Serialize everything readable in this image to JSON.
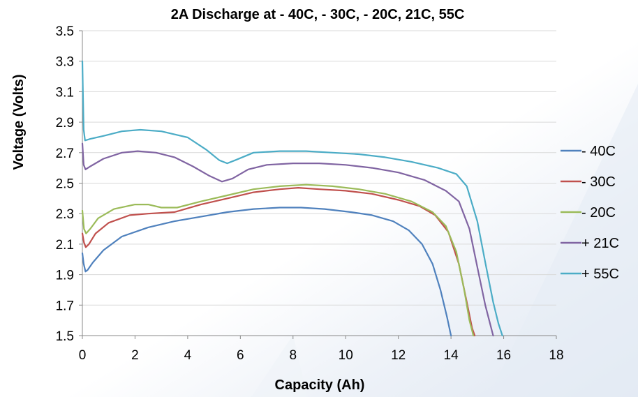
{
  "colors": {
    "-40C": "#4f81bd",
    "-30C": "#c0504d",
    "-20C": "#9bbb59",
    "+21C": "#8064a2",
    "+55C": "#4bacc6",
    "grid": "#d9d9d9",
    "axis": "#888888"
  },
  "chart_data": {
    "type": "line",
    "title": "2A Discharge at - 40C, - 30C, - 20C, 21C, 55C",
    "xlabel": "Capacity (Ah)",
    "ylabel": "Voltage (Volts)",
    "xlim": [
      0,
      18
    ],
    "ylim": [
      1.5,
      3.5
    ],
    "xticks": [
      "0",
      "2",
      "4",
      "6",
      "8",
      "10",
      "12",
      "14",
      "16",
      "18"
    ],
    "yticks": [
      "3.5",
      "3.3",
      "3.1",
      "2.9",
      "2.7",
      "2.5",
      "2.3",
      "2.1",
      "1.9",
      "1.7",
      "1.5"
    ],
    "grid": "horizontal",
    "legend_position": "right",
    "series": [
      {
        "name": "- 40C",
        "color_key": "-40C",
        "points": [
          [
            0,
            2.04
          ],
          [
            0.05,
            1.97
          ],
          [
            0.12,
            1.92
          ],
          [
            0.2,
            1.93
          ],
          [
            0.4,
            1.98
          ],
          [
            0.8,
            2.06
          ],
          [
            1.5,
            2.15
          ],
          [
            2.5,
            2.21
          ],
          [
            3.5,
            2.25
          ],
          [
            4.5,
            2.28
          ],
          [
            5.5,
            2.31
          ],
          [
            6.5,
            2.33
          ],
          [
            7.5,
            2.34
          ],
          [
            8.3,
            2.34
          ],
          [
            9.2,
            2.33
          ],
          [
            10.2,
            2.31
          ],
          [
            11.0,
            2.29
          ],
          [
            11.8,
            2.25
          ],
          [
            12.4,
            2.19
          ],
          [
            12.9,
            2.1
          ],
          [
            13.3,
            1.97
          ],
          [
            13.6,
            1.8
          ],
          [
            13.85,
            1.62
          ],
          [
            14.0,
            1.5
          ]
        ]
      },
      {
        "name": "- 30C",
        "color_key": "-30C",
        "points": [
          [
            0,
            2.17
          ],
          [
            0.06,
            2.11
          ],
          [
            0.13,
            2.08
          ],
          [
            0.25,
            2.1
          ],
          [
            0.5,
            2.17
          ],
          [
            1.0,
            2.24
          ],
          [
            1.8,
            2.29
          ],
          [
            2.5,
            2.3
          ],
          [
            3.5,
            2.31
          ],
          [
            4.5,
            2.36
          ],
          [
            5.5,
            2.4
          ],
          [
            6.5,
            2.44
          ],
          [
            7.5,
            2.46
          ],
          [
            8.2,
            2.47
          ],
          [
            9.0,
            2.46
          ],
          [
            10.0,
            2.45
          ],
          [
            11.0,
            2.43
          ],
          [
            12.0,
            2.39
          ],
          [
            12.8,
            2.35
          ],
          [
            13.4,
            2.29
          ],
          [
            13.9,
            2.18
          ],
          [
            14.3,
            1.97
          ],
          [
            14.6,
            1.72
          ],
          [
            14.8,
            1.55
          ],
          [
            14.9,
            1.5
          ]
        ]
      },
      {
        "name": "- 20C",
        "color_key": "-20C",
        "points": [
          [
            0,
            2.32
          ],
          [
            0.06,
            2.2
          ],
          [
            0.14,
            2.17
          ],
          [
            0.3,
            2.2
          ],
          [
            0.6,
            2.27
          ],
          [
            1.2,
            2.33
          ],
          [
            2.0,
            2.36
          ],
          [
            2.5,
            2.36
          ],
          [
            3.0,
            2.34
          ],
          [
            3.6,
            2.34
          ],
          [
            4.5,
            2.38
          ],
          [
            5.5,
            2.42
          ],
          [
            6.5,
            2.46
          ],
          [
            7.5,
            2.48
          ],
          [
            8.5,
            2.49
          ],
          [
            9.5,
            2.48
          ],
          [
            10.5,
            2.46
          ],
          [
            11.5,
            2.43
          ],
          [
            12.5,
            2.38
          ],
          [
            13.3,
            2.31
          ],
          [
            13.8,
            2.22
          ],
          [
            14.2,
            2.05
          ],
          [
            14.5,
            1.8
          ],
          [
            14.7,
            1.6
          ],
          [
            14.85,
            1.5
          ]
        ]
      },
      {
        "name": "+ 21C",
        "color_key": "+21C",
        "points": [
          [
            0,
            2.76
          ],
          [
            0.05,
            2.62
          ],
          [
            0.12,
            2.59
          ],
          [
            0.3,
            2.61
          ],
          [
            0.8,
            2.66
          ],
          [
            1.5,
            2.7
          ],
          [
            2.1,
            2.71
          ],
          [
            2.8,
            2.7
          ],
          [
            3.5,
            2.67
          ],
          [
            4.2,
            2.61
          ],
          [
            4.8,
            2.55
          ],
          [
            5.3,
            2.51
          ],
          [
            5.7,
            2.53
          ],
          [
            6.3,
            2.59
          ],
          [
            7.0,
            2.62
          ],
          [
            8.0,
            2.63
          ],
          [
            9.0,
            2.63
          ],
          [
            10.0,
            2.62
          ],
          [
            11.0,
            2.6
          ],
          [
            12.0,
            2.57
          ],
          [
            13.0,
            2.52
          ],
          [
            13.8,
            2.45
          ],
          [
            14.3,
            2.38
          ],
          [
            14.7,
            2.2
          ],
          [
            15.0,
            1.95
          ],
          [
            15.3,
            1.7
          ],
          [
            15.6,
            1.5
          ]
        ]
      },
      {
        "name": "+ 55C",
        "color_key": "+55C",
        "points": [
          [
            0,
            3.3
          ],
          [
            0.02,
            3.1
          ],
          [
            0.05,
            2.85
          ],
          [
            0.1,
            2.78
          ],
          [
            0.3,
            2.79
          ],
          [
            0.8,
            2.81
          ],
          [
            1.5,
            2.84
          ],
          [
            2.2,
            2.85
          ],
          [
            3.0,
            2.84
          ],
          [
            4.0,
            2.8
          ],
          [
            4.7,
            2.72
          ],
          [
            5.2,
            2.65
          ],
          [
            5.5,
            2.63
          ],
          [
            5.8,
            2.65
          ],
          [
            6.5,
            2.7
          ],
          [
            7.5,
            2.71
          ],
          [
            8.5,
            2.71
          ],
          [
            9.5,
            2.7
          ],
          [
            10.5,
            2.69
          ],
          [
            11.5,
            2.67
          ],
          [
            12.5,
            2.64
          ],
          [
            13.5,
            2.6
          ],
          [
            14.2,
            2.56
          ],
          [
            14.6,
            2.48
          ],
          [
            15.0,
            2.25
          ],
          [
            15.3,
            1.98
          ],
          [
            15.6,
            1.72
          ],
          [
            15.8,
            1.58
          ],
          [
            15.95,
            1.5
          ]
        ]
      }
    ]
  }
}
